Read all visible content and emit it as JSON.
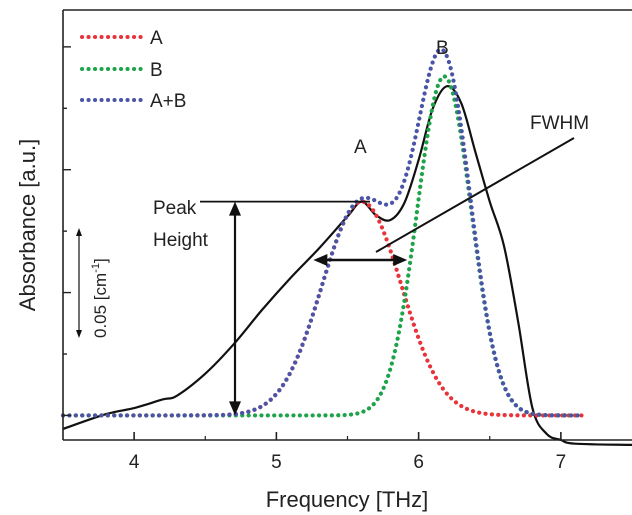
{
  "chart_data": {
    "type": "line",
    "xlabel": "Frequency [THz]",
    "ylabel": "Absorbance [a.u.]",
    "xlim": [
      3.5,
      7.5
    ],
    "ylim": [
      -0.01,
      0.165
    ],
    "x_ticks": [
      4,
      5,
      6,
      7
    ],
    "grid": false,
    "legend": {
      "placement": "top-left",
      "entries": [
        {
          "label": "A",
          "color": "#e8333a",
          "style": "dotted"
        },
        {
          "label": "B",
          "color": "#1fa34a",
          "style": "dotted"
        },
        {
          "label": "A+B",
          "color": "#4a55a8",
          "style": "dotted"
        }
      ]
    },
    "baseline": 0.0,
    "series": [
      {
        "color": "#111111",
        "style": "solid",
        "x": [
          3.5,
          3.8,
          4.0,
          4.2,
          4.3,
          4.5,
          4.7,
          4.9,
          5.1,
          5.3,
          5.5,
          5.6,
          5.7,
          5.8,
          5.9,
          6.0,
          6.1,
          6.2,
          6.3,
          6.4,
          6.5,
          6.6,
          6.7,
          6.8,
          6.9,
          7.0,
          7.1,
          7.5
        ],
        "y": [
          -0.0055,
          0.0005,
          0.003,
          0.0065,
          0.008,
          0.017,
          0.029,
          0.043,
          0.056,
          0.068,
          0.081,
          0.087,
          0.0815,
          0.0795,
          0.0865,
          0.104,
          0.125,
          0.134,
          0.127,
          0.107,
          0.087,
          0.069,
          0.038,
          0.003,
          -0.0075,
          -0.01,
          -0.0115,
          -0.012
        ]
      },
      {
        "name": "A",
        "color": "#e8333a",
        "style": "dotted",
        "gaussian": {
          "center": 5.6,
          "amplitude": 0.087,
          "sigma": 0.28
        },
        "x_range": [
          3.5,
          7.15
        ]
      },
      {
        "name": "B",
        "color": "#1fa34a",
        "style": "dotted",
        "gaussian": {
          "center": 6.18,
          "amplitude": 0.138,
          "sigma": 0.19
        },
        "x_range": [
          3.5,
          7.15
        ]
      },
      {
        "name": "A+B",
        "color": "#4a55a8",
        "style": "dotted",
        "sum_of": [
          "A",
          "B"
        ],
        "x_range": [
          3.5,
          7.15
        ]
      }
    ],
    "annotations": {
      "peak_a_label": "A",
      "peak_b_label": "B",
      "fwhm_label": "FWHM",
      "peak_height_label_1": "Peak",
      "peak_height_label_2": "Height",
      "scale_bar_label": "0.05 [cm",
      "scale_bar_superscript": "-1",
      "scale_bar_close": "]",
      "peak_height_value": 0.087,
      "fwhm_range": [
        5.26,
        5.92
      ],
      "scale_bar_range": [
        0.0,
        0.05
      ]
    }
  }
}
